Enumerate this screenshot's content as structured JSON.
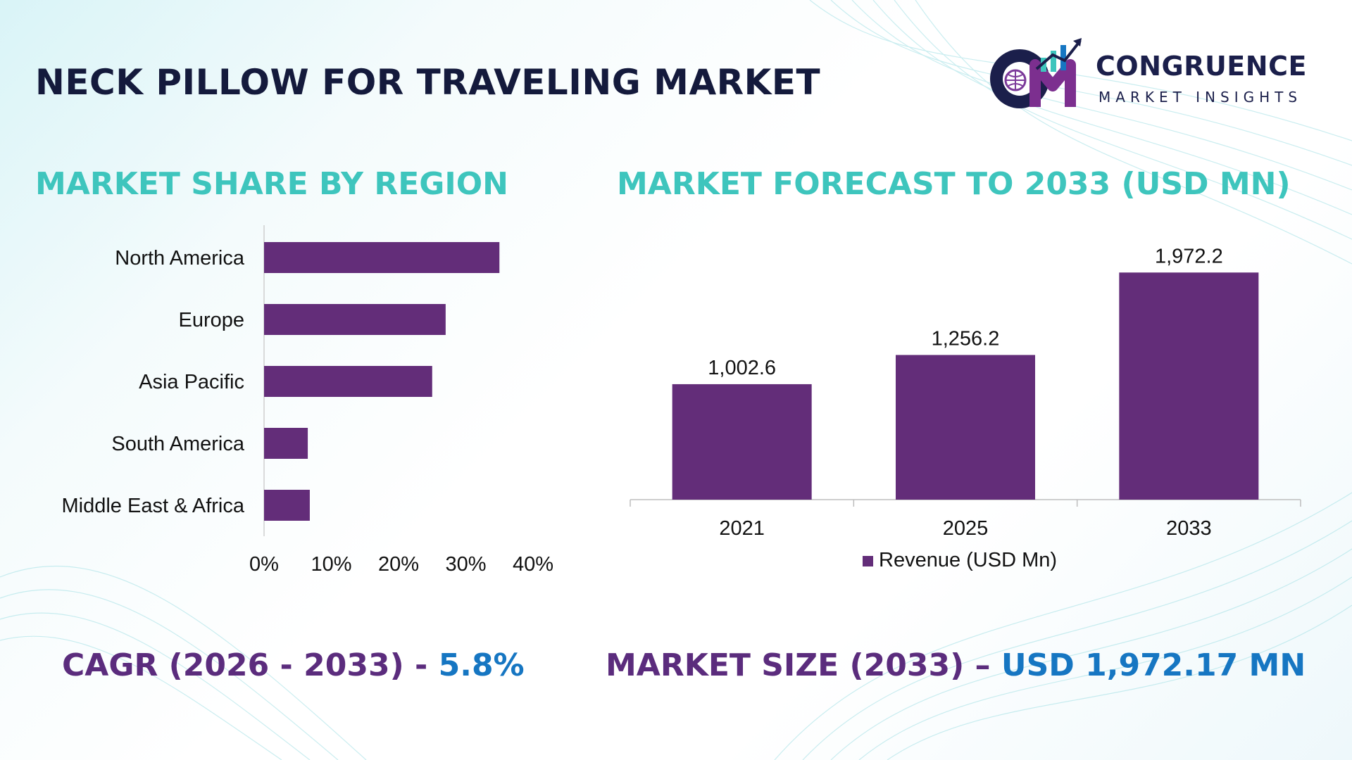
{
  "title": "NECK PILLOW FOR TRAVELING MARKET",
  "logo": {
    "mark": "CM",
    "name": "CONGRUENCE",
    "subtitle": "MARKET INSIGHTS"
  },
  "colors": {
    "bar": "#632d79",
    "teal": "#3ec5bd",
    "dark": "#141a3c",
    "purple_text": "#5b2c7d",
    "blue_text": "#1676c2"
  },
  "share_title": "MARKET SHARE BY REGION",
  "forecast_title": "MARKET FORECAST TO 2033 (USD MN)",
  "chart_data": [
    {
      "type": "bar",
      "orientation": "horizontal",
      "title": "MARKET SHARE BY REGION",
      "categories": [
        "North America",
        "Europe",
        "Asia Pacific",
        "South America",
        "Middle East & Africa"
      ],
      "values": [
        35,
        27,
        25,
        6.5,
        6.8
      ],
      "xlim": [
        0,
        40
      ],
      "xticks": [
        "0%",
        "10%",
        "20%",
        "30%",
        "40%"
      ],
      "grid": false
    },
    {
      "type": "bar",
      "orientation": "vertical",
      "title": "MARKET FORECAST TO 2033 (USD MN)",
      "categories": [
        "2021",
        "2025",
        "2033"
      ],
      "values": [
        1002.6,
        1256.2,
        1972.2
      ],
      "data_labels": [
        "1,002.6",
        "1,256.2",
        "1,972.2"
      ],
      "ylim": [
        0,
        2200
      ],
      "legend": "Revenue (USD Mn)",
      "legend_position": "bottom",
      "grid": false
    }
  ],
  "cagr": {
    "label": "CAGR (2026 - 2033) - ",
    "value": "5.8%"
  },
  "market_size": {
    "label": "MARKET SIZE (2033) – ",
    "value": "USD 1,972.17 MN"
  }
}
